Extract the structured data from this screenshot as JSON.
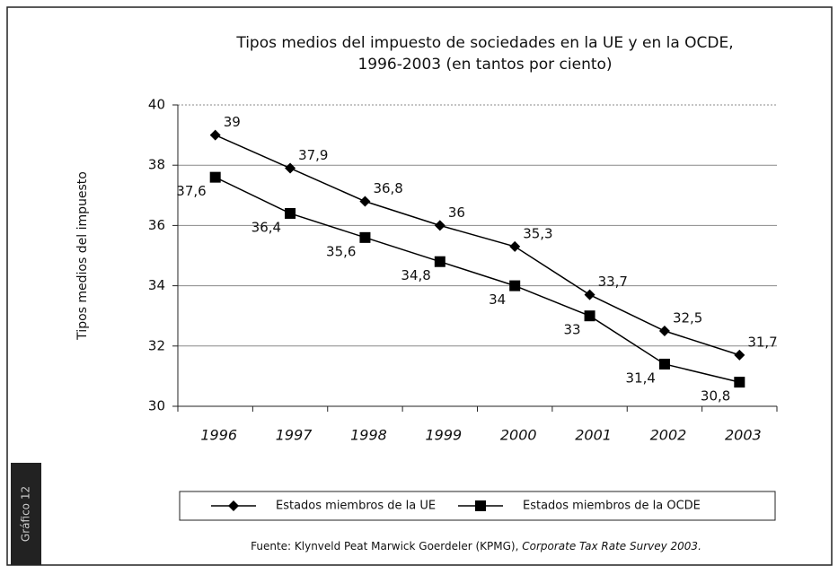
{
  "chart_data": {
    "type": "line",
    "title": "Tipos medios del impuesto de sociedades en la UE y en la OCDE,",
    "subtitle": "1996-2003 (en tantos por ciento)",
    "ylabel": "Tipos medios del impuesto",
    "categories": [
      "1996",
      "1997",
      "1998",
      "1999",
      "2000",
      "2001",
      "2002",
      "2003"
    ],
    "series": [
      {
        "name": "Estados miembros de la UE",
        "color": "#000000",
        "marker": "diamond",
        "values": [
          39,
          37.9,
          36.8,
          36,
          35.3,
          33.7,
          32.5,
          31.7
        ],
        "value_labels": [
          "39",
          "37,9",
          "36,8",
          "36",
          "35,3",
          "33,7",
          "32,5",
          "31,7"
        ]
      },
      {
        "name": "Estados miembros de la OCDE",
        "color": "#000000",
        "marker": "square",
        "values": [
          37.6,
          36.4,
          35.6,
          34.8,
          34,
          33,
          31.4,
          30.8
        ],
        "value_labels": [
          "37,6",
          "36,4",
          "35,6",
          "34,8",
          "34",
          "33",
          "31,4",
          "30,8"
        ]
      }
    ],
    "ylim": [
      30,
      40
    ],
    "yticks": [
      30,
      32,
      34,
      36,
      38,
      40
    ],
    "grid": true,
    "source": "Fuente: Klynveld Peat Marwick Goerdeler (KPMG), ",
    "source_title": "Corporate Tax Rate Survey 2003.",
    "side_label": "Gráfico 12"
  }
}
